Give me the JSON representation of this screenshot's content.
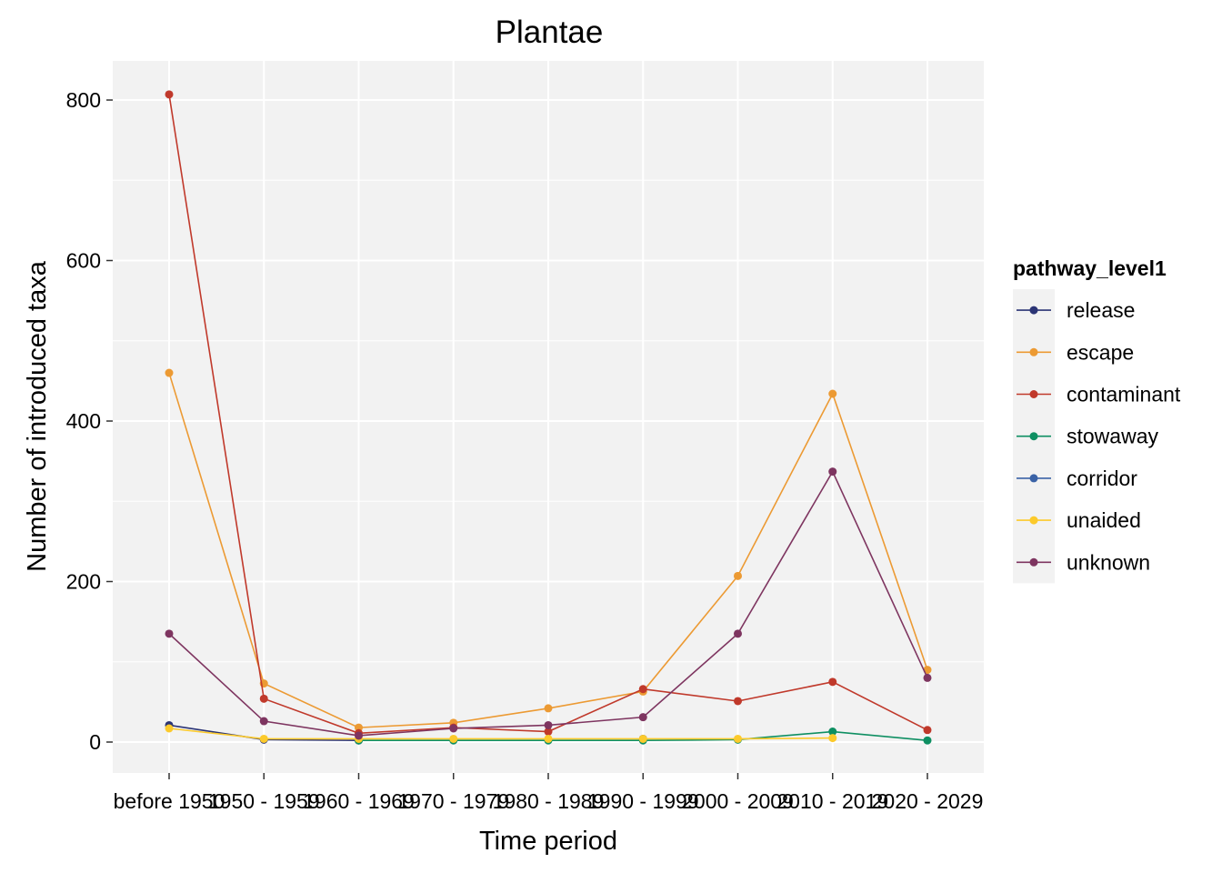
{
  "chart_data": {
    "type": "line",
    "title": "Plantae",
    "xlabel": "Time period",
    "ylabel": "Number of introduced taxa",
    "categories": [
      "before 1950",
      "1950 - 1959",
      "1960 - 1969",
      "1970 - 1979",
      "1980 - 1989",
      "1990 - 1999",
      "2000 - 2009",
      "2010 - 2019",
      "2020 - 2029"
    ],
    "ylim": [
      -40,
      850
    ],
    "yticks": [
      0,
      200,
      400,
      600,
      800
    ],
    "grid": true,
    "legend": {
      "title": "pathway_level1",
      "position": "right"
    },
    "series": [
      {
        "name": "release",
        "color": "#2B3475",
        "values": [
          21,
          3,
          2,
          null,
          null,
          4,
          null,
          null,
          null
        ]
      },
      {
        "name": "escape",
        "color": "#EC9A33",
        "values": [
          460,
          73,
          18,
          24,
          42,
          63,
          207,
          434,
          90
        ]
      },
      {
        "name": "contaminant",
        "color": "#C0392B",
        "values": [
          807,
          54,
          11,
          18,
          13,
          66,
          51,
          75,
          15
        ]
      },
      {
        "name": "stowaway",
        "color": "#0E8F62",
        "values": [
          null,
          null,
          2,
          2,
          2,
          2,
          3,
          13,
          2
        ]
      },
      {
        "name": "corridor",
        "color": "#3A62A6",
        "values": [
          null,
          null,
          null,
          null,
          null,
          null,
          null,
          null,
          null
        ]
      },
      {
        "name": "unaided",
        "color": "#FCCA2B",
        "values": [
          17,
          4,
          4,
          4,
          4,
          4,
          4,
          5,
          null
        ]
      },
      {
        "name": "unknown",
        "color": "#7E3560",
        "values": [
          135,
          26,
          8,
          17,
          21,
          31,
          135,
          337,
          80
        ]
      }
    ]
  }
}
